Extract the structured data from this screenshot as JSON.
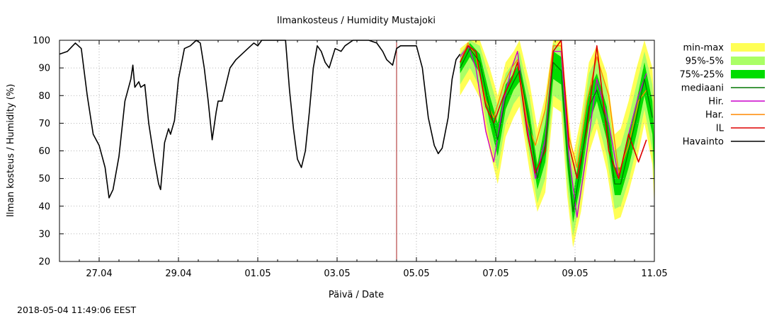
{
  "chart_data": {
    "type": "line",
    "title": "Ilmankosteus / Humidity  Mustajoki",
    "xlabel": "Päivä / Date",
    "ylabel": "Ilman kosteus / Humidity (%)",
    "timestamp": "2018-05-04 11:49:06 EEST",
    "x_range_days": [
      0,
      15
    ],
    "ylim": [
      20,
      100
    ],
    "yticks": [
      20,
      30,
      40,
      50,
      60,
      70,
      80,
      90,
      100
    ],
    "xticks": [
      {
        "day": 1,
        "label": "27.04"
      },
      {
        "day": 3,
        "label": "29.04"
      },
      {
        "day": 5,
        "label": "01.05"
      },
      {
        "day": 7,
        "label": "03.05"
      },
      {
        "day": 9,
        "label": "05.05"
      },
      {
        "day": 11,
        "label": "07.05"
      },
      {
        "day": 13,
        "label": "09.05"
      },
      {
        "day": 15,
        "label": "11.05"
      }
    ],
    "forecast_start_day": 8.5,
    "grid": true,
    "legend_position": "right",
    "legend": [
      {
        "key": "minmax",
        "label": "min-max",
        "kind": "band",
        "color": "#ffff55"
      },
      {
        "key": "p95",
        "label": "95%-5%",
        "kind": "band",
        "color": "#aaff66"
      },
      {
        "key": "p75",
        "label": "75%-25%",
        "kind": "band",
        "color": "#00dd00"
      },
      {
        "key": "median",
        "label": "mediaani",
        "kind": "line",
        "color": "#007700"
      },
      {
        "key": "hir",
        "label": "Hir.",
        "kind": "line",
        "color": "#cc00cc"
      },
      {
        "key": "har",
        "label": "Har.",
        "kind": "line",
        "color": "#ff8800"
      },
      {
        "key": "il",
        "label": "IL",
        "kind": "line",
        "color": "#dd0000"
      },
      {
        "key": "obs",
        "label": "Havainto",
        "kind": "line",
        "color": "#000000"
      }
    ],
    "series": {
      "obs": [
        [
          0.0,
          95
        ],
        [
          0.2,
          96
        ],
        [
          0.4,
          99
        ],
        [
          0.55,
          97
        ],
        [
          0.7,
          80
        ],
        [
          0.85,
          66
        ],
        [
          1.0,
          62
        ],
        [
          1.15,
          54
        ],
        [
          1.25,
          43
        ],
        [
          1.35,
          46
        ],
        [
          1.5,
          58
        ],
        [
          1.65,
          78
        ],
        [
          1.8,
          86
        ],
        [
          1.85,
          91
        ],
        [
          1.9,
          83
        ],
        [
          2.0,
          85
        ],
        [
          2.05,
          83
        ],
        [
          2.15,
          84
        ],
        [
          2.25,
          70
        ],
        [
          2.4,
          56
        ],
        [
          2.5,
          48
        ],
        [
          2.55,
          46
        ],
        [
          2.65,
          63
        ],
        [
          2.75,
          68
        ],
        [
          2.8,
          66
        ],
        [
          2.9,
          71
        ],
        [
          3.0,
          86
        ],
        [
          3.15,
          97
        ],
        [
          3.3,
          98
        ],
        [
          3.45,
          100
        ],
        [
          3.55,
          99
        ],
        [
          3.65,
          90
        ],
        [
          3.75,
          78
        ],
        [
          3.85,
          64
        ],
        [
          3.95,
          74
        ],
        [
          4.0,
          78
        ],
        [
          4.1,
          78
        ],
        [
          4.2,
          84
        ],
        [
          4.3,
          90
        ],
        [
          4.45,
          93
        ],
        [
          4.6,
          95
        ],
        [
          4.75,
          97
        ],
        [
          4.9,
          99
        ],
        [
          5.0,
          98
        ],
        [
          5.1,
          100
        ],
        [
          5.5,
          100
        ],
        [
          5.7,
          100
        ],
        [
          5.8,
          82
        ],
        [
          5.9,
          68
        ],
        [
          6.0,
          57
        ],
        [
          6.1,
          54
        ],
        [
          6.2,
          60
        ],
        [
          6.3,
          74
        ],
        [
          6.4,
          90
        ],
        [
          6.5,
          98
        ],
        [
          6.6,
          96
        ],
        [
          6.7,
          92
        ],
        [
          6.8,
          90
        ],
        [
          6.95,
          97
        ],
        [
          7.1,
          96
        ],
        [
          7.2,
          98
        ],
        [
          7.4,
          100
        ],
        [
          7.8,
          100
        ],
        [
          8.0,
          99
        ],
        [
          8.15,
          96
        ],
        [
          8.25,
          93
        ],
        [
          8.4,
          91
        ],
        [
          8.5,
          97
        ],
        [
          8.6,
          98
        ],
        [
          8.75,
          98
        ],
        [
          9.0,
          98
        ],
        [
          9.15,
          90
        ],
        [
          9.3,
          72
        ],
        [
          9.45,
          62
        ],
        [
          9.55,
          59
        ],
        [
          9.65,
          61
        ],
        [
          9.8,
          72
        ],
        [
          9.9,
          86
        ],
        [
          10.0,
          93
        ],
        [
          10.1,
          95
        ]
      ],
      "median": [
        [
          10.1,
          90
        ],
        [
          10.35,
          97
        ],
        [
          10.6,
          92
        ],
        [
          10.85,
          75
        ],
        [
          11.05,
          64
        ],
        [
          11.25,
          79
        ],
        [
          11.45,
          85
        ],
        [
          11.6,
          89
        ],
        [
          11.85,
          70
        ],
        [
          12.05,
          50
        ],
        [
          12.25,
          62
        ],
        [
          12.45,
          92
        ],
        [
          12.65,
          89
        ],
        [
          12.8,
          60
        ],
        [
          12.95,
          38
        ],
        [
          13.15,
          55
        ],
        [
          13.35,
          76
        ],
        [
          13.55,
          82
        ],
        [
          13.8,
          70
        ],
        [
          14.0,
          48
        ],
        [
          14.15,
          48
        ],
        [
          14.35,
          60
        ],
        [
          14.55,
          72
        ],
        [
          14.75,
          86
        ],
        [
          14.95,
          72
        ],
        [
          15.1,
          55
        ],
        [
          15.3,
          42
        ],
        [
          15.5,
          60
        ],
        [
          15.7,
          68
        ],
        [
          15.85,
          74
        ]
      ],
      "band_p75": [
        [
          10.1,
          88,
          92
        ],
        [
          10.35,
          94,
          99
        ],
        [
          10.6,
          88,
          95
        ],
        [
          10.85,
          70,
          80
        ],
        [
          11.05,
          58,
          70
        ],
        [
          11.25,
          75,
          84
        ],
        [
          11.45,
          82,
          88
        ],
        [
          11.6,
          85,
          92
        ],
        [
          11.85,
          65,
          74
        ],
        [
          12.05,
          46,
          55
        ],
        [
          12.25,
          56,
          70
        ],
        [
          12.45,
          86,
          96
        ],
        [
          12.65,
          84,
          94
        ],
        [
          12.8,
          55,
          66
        ],
        [
          12.95,
          34,
          44
        ],
        [
          13.15,
          49,
          62
        ],
        [
          13.35,
          70,
          82
        ],
        [
          13.55,
          78,
          88
        ],
        [
          13.8,
          64,
          76
        ],
        [
          14.0,
          44,
          54
        ],
        [
          14.15,
          44,
          54
        ],
        [
          14.35,
          54,
          66
        ],
        [
          14.55,
          66,
          78
        ],
        [
          14.75,
          80,
          92
        ],
        [
          14.95,
          66,
          78
        ],
        [
          15.1,
          50,
          62
        ],
        [
          15.3,
          38,
          48
        ],
        [
          15.5,
          54,
          66
        ],
        [
          15.7,
          62,
          74
        ],
        [
          15.85,
          70,
          80
        ]
      ],
      "band_p95": [
        [
          10.1,
          84,
          95
        ],
        [
          10.35,
          90,
          100
        ],
        [
          10.6,
          83,
          98
        ],
        [
          10.85,
          64,
          86
        ],
        [
          11.05,
          53,
          76
        ],
        [
          11.25,
          70,
          88
        ],
        [
          11.45,
          77,
          92
        ],
        [
          11.6,
          80,
          96
        ],
        [
          11.85,
          58,
          80
        ],
        [
          12.05,
          41,
          62
        ],
        [
          12.25,
          50,
          76
        ],
        [
          12.45,
          80,
          99
        ],
        [
          12.65,
          78,
          97
        ],
        [
          12.8,
          48,
          72
        ],
        [
          12.95,
          29,
          52
        ],
        [
          13.15,
          43,
          68
        ],
        [
          13.35,
          64,
          88
        ],
        [
          13.55,
          72,
          94
        ],
        [
          13.8,
          58,
          82
        ],
        [
          14.0,
          39,
          60
        ],
        [
          14.15,
          40,
          62
        ],
        [
          14.35,
          49,
          72
        ],
        [
          14.55,
          61,
          84
        ],
        [
          14.75,
          75,
          96
        ],
        [
          14.95,
          60,
          84
        ],
        [
          15.1,
          45,
          70
        ],
        [
          15.3,
          34,
          56
        ],
        [
          15.5,
          49,
          72
        ],
        [
          15.7,
          57,
          80
        ],
        [
          15.85,
          66,
          86
        ]
      ],
      "band_minmax": [
        [
          10.1,
          80,
          97
        ],
        [
          10.35,
          86,
          100
        ],
        [
          10.6,
          79,
          100
        ],
        [
          10.85,
          60,
          90
        ],
        [
          11.05,
          48,
          80
        ],
        [
          11.25,
          65,
          92
        ],
        [
          11.45,
          72,
          96
        ],
        [
          11.6,
          76,
          100
        ],
        [
          11.85,
          53,
          85
        ],
        [
          12.05,
          38,
          68
        ],
        [
          12.25,
          45,
          80
        ],
        [
          12.45,
          76,
          100
        ],
        [
          12.65,
          74,
          100
        ],
        [
          12.8,
          44,
          78
        ],
        [
          12.95,
          25,
          58
        ],
        [
          13.15,
          38,
          72
        ],
        [
          13.35,
          59,
          92
        ],
        [
          13.55,
          68,
          98
        ],
        [
          13.8,
          53,
          88
        ],
        [
          14.0,
          35,
          66
        ],
        [
          14.15,
          36,
          68
        ],
        [
          14.35,
          45,
          78
        ],
        [
          14.55,
          56,
          90
        ],
        [
          14.75,
          70,
          100
        ],
        [
          14.95,
          55,
          90
        ],
        [
          15.1,
          40,
          76
        ],
        [
          15.3,
          30,
          62
        ],
        [
          15.5,
          45,
          78
        ],
        [
          15.7,
          52,
          84
        ],
        [
          15.85,
          62,
          88
        ]
      ],
      "hir": [
        [
          10.1,
          94
        ],
        [
          10.3,
          98
        ],
        [
          10.5,
          90
        ],
        [
          10.75,
          67
        ],
        [
          10.95,
          56
        ],
        [
          11.2,
          78
        ],
        [
          11.4,
          90
        ],
        [
          11.55,
          96
        ],
        [
          11.8,
          68
        ],
        [
          12.0,
          50
        ],
        [
          12.25,
          64
        ],
        [
          12.45,
          96
        ],
        [
          12.65,
          96
        ],
        [
          12.85,
          58
        ],
        [
          13.05,
          36
        ],
        [
          13.3,
          60
        ],
        [
          13.55,
          86
        ],
        [
          13.85,
          70
        ],
        [
          14.1,
          50
        ],
        [
          14.35,
          66
        ],
        [
          14.6,
          80
        ],
        [
          14.8,
          88
        ],
        [
          15.05,
          60
        ],
        [
          15.3,
          40
        ],
        [
          15.55,
          66
        ],
        [
          15.85,
          76
        ]
      ],
      "har": [
        [
          10.1,
          92
        ],
        [
          10.3,
          99
        ],
        [
          10.5,
          94
        ],
        [
          10.75,
          78
        ],
        [
          10.95,
          72
        ],
        [
          11.2,
          84
        ],
        [
          11.4,
          90
        ],
        [
          11.55,
          93
        ],
        [
          11.8,
          70
        ],
        [
          12.0,
          62
        ],
        [
          12.25,
          75
        ],
        [
          12.45,
          98
        ],
        [
          12.65,
          98
        ],
        [
          12.85,
          65
        ],
        [
          13.05,
          54
        ],
        [
          13.3,
          78
        ],
        [
          13.55,
          94
        ],
        [
          13.85,
          80
        ],
        [
          14.1,
          52
        ],
        [
          14.35,
          62
        ],
        [
          14.6,
          78
        ],
        [
          14.8,
          82
        ],
        [
          15.05,
          58
        ],
        [
          15.3,
          36
        ],
        [
          15.55,
          52
        ],
        [
          15.85,
          68
        ]
      ],
      "il": [
        [
          10.1,
          92
        ],
        [
          10.3,
          98
        ],
        [
          10.5,
          96
        ],
        [
          10.75,
          76
        ],
        [
          10.95,
          70
        ],
        [
          11.2,
          80
        ],
        [
          11.4,
          86
        ],
        [
          11.55,
          92
        ],
        [
          11.8,
          66
        ],
        [
          12.0,
          52
        ],
        [
          12.25,
          60
        ],
        [
          12.45,
          96
        ],
        [
          12.65,
          100
        ],
        [
          12.85,
          62
        ],
        [
          13.05,
          50
        ],
        [
          13.3,
          68
        ],
        [
          13.55,
          98
        ],
        [
          13.85,
          60
        ],
        [
          14.1,
          50
        ],
        [
          14.35,
          66
        ],
        [
          14.6,
          56
        ],
        [
          14.8,
          64
        ],
        [
          15.05,
          45
        ],
        [
          15.3,
          35
        ],
        [
          15.55,
          50
        ],
        [
          15.8,
          60
        ],
        [
          16.0,
          70
        ],
        [
          16.2,
          60
        ],
        [
          16.4,
          50
        ],
        [
          16.55,
          60
        ],
        [
          16.7,
          78
        ]
      ]
    }
  }
}
